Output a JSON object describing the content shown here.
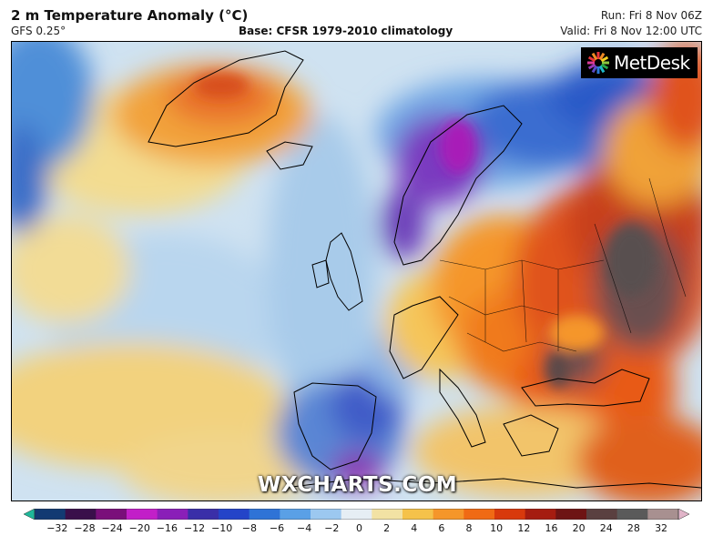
{
  "header": {
    "title": "2 m Temperature Anomaly (°C)",
    "model": "GFS 0.25°",
    "base": "Base: CFSR 1979-2010 climatology",
    "run": "Run: Fri 8 Nov 06Z",
    "valid": "Valid: Fri 8 Nov 12:00 UTC"
  },
  "logo": {
    "text": "MetDesk",
    "icon": "metdesk-sunburst-logo"
  },
  "watermark": "WXCHARTS.COM",
  "colorbar": {
    "ticks": [
      "−32",
      "−28",
      "−24",
      "−20",
      "−16",
      "−12",
      "−10",
      "−8",
      "−6",
      "−4",
      "−2",
      "0",
      "2",
      "4",
      "6",
      "8",
      "10",
      "12",
      "16",
      "20",
      "24",
      "28",
      "32"
    ],
    "colors": [
      "#1fb89a",
      "#123a72",
      "#3a0f4a",
      "#7a0f7a",
      "#c21fc8",
      "#8a1fb8",
      "#3a2fa8",
      "#2444c8",
      "#2f73d6",
      "#5aa0e6",
      "#9cc8f0",
      "#e6eef4",
      "#f2e2a4",
      "#f5c24a",
      "#f5962a",
      "#f06a14",
      "#d8390c",
      "#a51c10",
      "#6e1414",
      "#5a4040",
      "#5a5a5a",
      "#a89090",
      "#e0b4c8"
    ]
  }
}
